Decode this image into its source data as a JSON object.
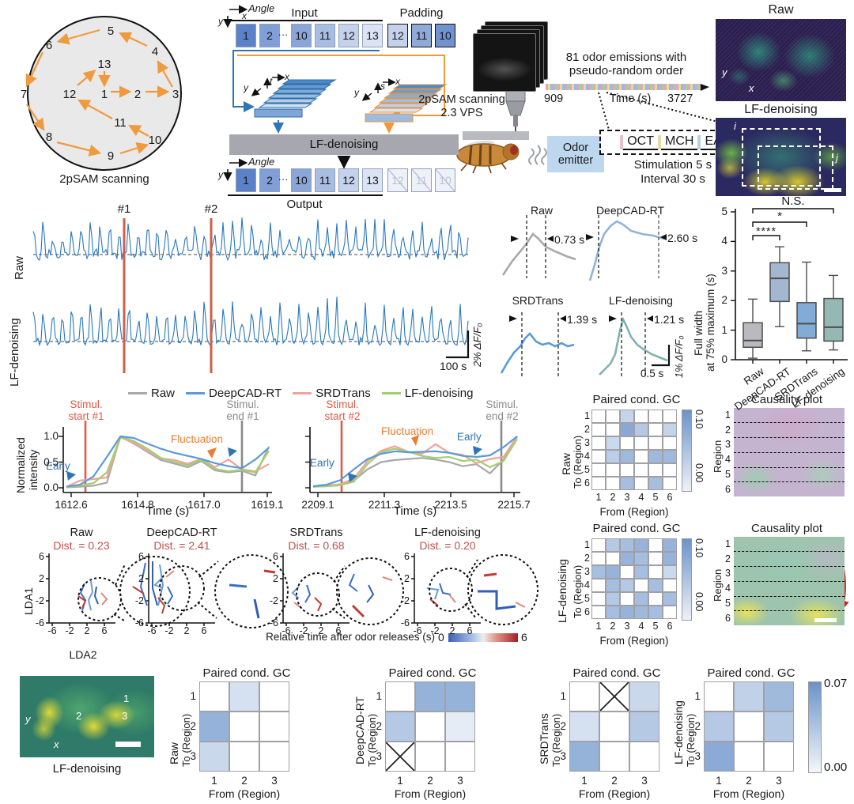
{
  "scanning": {
    "caption": "2pSAM scanning",
    "points": [
      "1",
      "2",
      "3",
      "4",
      "5",
      "6",
      "7",
      "8",
      "9",
      "10",
      "11",
      "12",
      "13"
    ]
  },
  "pipeline": {
    "angle": "Angle",
    "x": "x",
    "y": "y",
    "t": "t",
    "s": "s",
    "input": "Input",
    "padding": "Padding",
    "output": "Output",
    "ellipsis": "···",
    "bar": "LF-denoising",
    "input_boxes": [
      "1",
      "2",
      "10",
      "11",
      "12",
      "13"
    ],
    "padding_boxes": [
      "12",
      "11",
      "10"
    ],
    "output_boxes": [
      "1",
      "2",
      "10",
      "11",
      "12",
      "13"
    ],
    "ghost_boxes": [
      "12",
      "11",
      "10"
    ]
  },
  "experiment": {
    "scanning_line1": "2pSAM scanning",
    "scanning_line2": "2.3 VPS",
    "odor_line1": "Odor",
    "odor_line2": "emitter",
    "emissions_line1": "81 odor emissions with",
    "emissions_line2": "pseudo-random order",
    "t0": "909",
    "t1": "3727",
    "time_label": "Time (s)",
    "odors": [
      "OCT",
      "MCH",
      "EA"
    ],
    "stim": "Stimulation 5 s",
    "interval": "Interval 30 s"
  },
  "top_images": {
    "raw": "Raw",
    "lf": "LF-denoising",
    "roi_i": "i",
    "roi_j": "j",
    "x": "x",
    "y": "y"
  },
  "traces": {
    "row1": "Raw",
    "row2": "LF-denoising",
    "m1": "#1",
    "m2": "#2",
    "scale_y": "2% ΔF/F₀",
    "scale_x": "100 s"
  },
  "fwhm": {
    "plots": [
      {
        "title": "Raw",
        "width": "0.73 s"
      },
      {
        "title": "DeepCAD-RT",
        "width": "2.60 s"
      },
      {
        "title": "SRDTrans",
        "width": "1.39 s"
      },
      {
        "title": "LF-denoising",
        "width": "1.21 s"
      }
    ],
    "scale_y": "1% ΔF/F₀",
    "scale_x": "0.5 s"
  },
  "boxplot": {
    "ylabel1": "Full width",
    "ylabel2": "at 75% maximum (s)",
    "yticks": [
      "0",
      "1",
      "2",
      "3",
      "4",
      "5"
    ],
    "sig": [
      {
        "label": "****"
      },
      {
        "label": "*"
      },
      {
        "label": "N.S."
      }
    ],
    "boxes": [
      {
        "label": "Raw",
        "color": "#b9b9bf",
        "lo": 0.05,
        "q1": 0.42,
        "med": 0.65,
        "q3": 1.25,
        "hi": 2.05
      },
      {
        "label": "DeepCAD-RT",
        "color": "#a3b8d0",
        "lo": 1.12,
        "q1": 1.97,
        "med": 2.75,
        "q3": 3.28,
        "hi": 3.82
      },
      {
        "label": "SRDTrans",
        "color": "#82abd6",
        "lo": 0.3,
        "q1": 0.73,
        "med": 1.22,
        "q3": 1.93,
        "hi": 3.3
      },
      {
        "label": "LF-denoising",
        "color": "#96b8b5",
        "lo": 0.33,
        "q1": 0.63,
        "med": 1.1,
        "q3": 2.07,
        "hi": 2.85
      }
    ]
  },
  "legend": {
    "items": [
      {
        "label": "Raw",
        "color": "#a8a8ae"
      },
      {
        "label": "DeepCAD-RT",
        "color": "#5b9bd5"
      },
      {
        "label": "SRDTrans",
        "color": "#f2a29c"
      },
      {
        "label": "LF-denoising",
        "color": "#a3cf6e"
      }
    ]
  },
  "stim_plots": {
    "ylabel1": "Normalized",
    "ylabel2": "intensity",
    "yticks": [
      "1.0",
      "0.5",
      "0.0"
    ],
    "xlabel": "Time (s)",
    "plots": [
      {
        "xticks": [
          "1612.6",
          "1614.8",
          "1617.0",
          "1619.1"
        ],
        "start_l1": "Stimul.",
        "start_l2": "start #1",
        "end_l1": "Stimul.",
        "end_l2": "end #1",
        "early": "Early",
        "fluct": "Fluctuation",
        "series": {
          "raw": [
            0.01,
            0.02,
            0.04,
            0.1,
            1.0,
            0.86,
            0.7,
            0.54,
            0.47,
            0.4,
            0.52,
            0.34,
            0.3,
            0.33,
            0.24,
            0.8
          ],
          "deepcad": [
            0.02,
            0.06,
            0.22,
            0.6,
            1.0,
            0.97,
            0.86,
            0.76,
            0.68,
            0.62,
            0.56,
            0.48,
            0.42,
            0.38,
            0.55,
            0.78
          ],
          "srd": [
            0.02,
            0.14,
            0.17,
            0.2,
            0.98,
            0.88,
            0.72,
            0.57,
            0.54,
            0.47,
            0.56,
            0.4,
            0.55,
            0.36,
            0.32,
            0.46
          ],
          "lf": [
            0.01,
            0.04,
            0.09,
            0.3,
            0.99,
            0.91,
            0.76,
            0.58,
            0.5,
            0.44,
            0.55,
            0.37,
            0.32,
            0.35,
            0.3,
            0.72
          ]
        }
      },
      {
        "xticks": [
          "2209.1",
          "2211.3",
          "2213.5",
          "2215.7"
        ],
        "start_l1": "Stimul.",
        "start_l2": "start #2",
        "end_l1": "Stimul.",
        "end_l2": "end #2",
        "early": "Early",
        "fluct": "Fluctuation",
        "early2": "Early",
        "series": {
          "raw": [
            0.02,
            0.03,
            0.05,
            0.14,
            0.36,
            0.5,
            0.54,
            0.56,
            0.58,
            0.55,
            0.5,
            0.42,
            0.46,
            0.28,
            0.55,
            1.0
          ],
          "deepcad": [
            0.03,
            0.06,
            0.15,
            0.36,
            0.56,
            0.66,
            0.71,
            0.69,
            0.7,
            0.71,
            0.68,
            0.62,
            0.6,
            0.63,
            0.79,
            1.0
          ],
          "srd": [
            0.02,
            0.04,
            0.07,
            0.18,
            0.52,
            0.72,
            0.81,
            0.7,
            0.66,
            0.85,
            0.68,
            0.64,
            0.48,
            0.56,
            0.6,
            1.0
          ],
          "lf": [
            0.02,
            0.03,
            0.05,
            0.12,
            0.46,
            0.69,
            0.76,
            0.7,
            0.62,
            0.58,
            0.6,
            0.52,
            0.55,
            0.4,
            0.52,
            0.95
          ]
        }
      }
    ]
  },
  "gc6": {
    "title": "Paired cond. GC",
    "from_label": "From (Region)",
    "to_label": "To (Region)",
    "ticks": [
      "1",
      "2",
      "3",
      "4",
      "5",
      "6"
    ],
    "cb_max": "0.10",
    "cb_min": "0.00",
    "max": 0.1,
    "panels": [
      {
        "name": "Raw",
        "matrix": [
          [
            0,
            0,
            0.04,
            0,
            0,
            0
          ],
          [
            0,
            0,
            0.08,
            0.05,
            0,
            0.04
          ],
          [
            0,
            0.035,
            0,
            0,
            0,
            0
          ],
          [
            0,
            0.045,
            0.065,
            0,
            0.065,
            0.065
          ],
          [
            0,
            0,
            0,
            0,
            0,
            0
          ],
          [
            0,
            0,
            0.06,
            0,
            0.06,
            0
          ]
        ]
      },
      {
        "name": "LF-denoising",
        "matrix": [
          [
            0,
            0.05,
            0.06,
            0.07,
            0,
            0.07
          ],
          [
            0,
            0,
            0.07,
            0.06,
            0,
            0.07
          ],
          [
            0.06,
            0.07,
            0,
            0.06,
            0,
            0.035
          ],
          [
            0,
            0.06,
            0.05,
            0,
            0.06,
            0
          ],
          [
            0,
            0.05,
            0,
            0.06,
            0,
            0.06
          ],
          [
            0,
            0.06,
            0.07,
            0.065,
            0.06,
            0
          ]
        ]
      }
    ]
  },
  "causality": {
    "title": "Causality plot",
    "region_label": "Region",
    "ticks": [
      "1",
      "2",
      "3",
      "4",
      "5",
      "6"
    ]
  },
  "lda": {
    "ylabel": "LDA1",
    "xlabel": "LDA2",
    "yticks": [
      "6",
      "2",
      "-2",
      "-6"
    ],
    "xticks": [
      "-6",
      "-2",
      "2",
      "6"
    ],
    "plots": [
      {
        "title": "Raw",
        "dist": "Dist. = 0.23"
      },
      {
        "title": "DeepCAD-RT",
        "dist": "Dist. = 2.41"
      },
      {
        "title": "SRDTrans",
        "dist": "Dist. = 0.68"
      },
      {
        "title": "LF-denoising",
        "dist": "Dist. = 0.20"
      }
    ],
    "cb_label": "Relative time after odor releases (s)",
    "cb_min": "0",
    "cb_max": "6"
  },
  "bottom": {
    "image_label": "LF-denoising",
    "regions": [
      "1",
      "2",
      "3"
    ],
    "x": "x",
    "y": "y",
    "gc3": {
      "title": "Paired cond. GC",
      "from_label": "From (Region)",
      "to_label": "To (Region)",
      "ticks": [
        "1",
        "2",
        "3"
      ],
      "cb_max": "0.07",
      "cb_min": "0.00",
      "max": 0.07,
      "panels": [
        {
          "name": "Raw",
          "matrix": [
            [
              0,
              0.02,
              0
            ],
            [
              0.05,
              0,
              0
            ],
            [
              0.025,
              0,
              0
            ]
          ]
        },
        {
          "name": "DeepCAD-RT",
          "matrix": [
            [
              0,
              0.05,
              0.05
            ],
            [
              0.035,
              0,
              0.012
            ],
            [
              "x",
              0,
              0
            ]
          ]
        },
        {
          "name": "SRDTrans",
          "matrix": [
            [
              0,
              "x",
              0.025
            ],
            [
              0.02,
              0,
              0.035
            ],
            [
              0.05,
              0,
              0
            ]
          ]
        },
        {
          "name": "LF-denoising",
          "matrix": [
            [
              0,
              0.03,
              0.045
            ],
            [
              0.035,
              0,
              0.035
            ],
            [
              0.055,
              0,
              0
            ]
          ]
        }
      ]
    }
  }
}
